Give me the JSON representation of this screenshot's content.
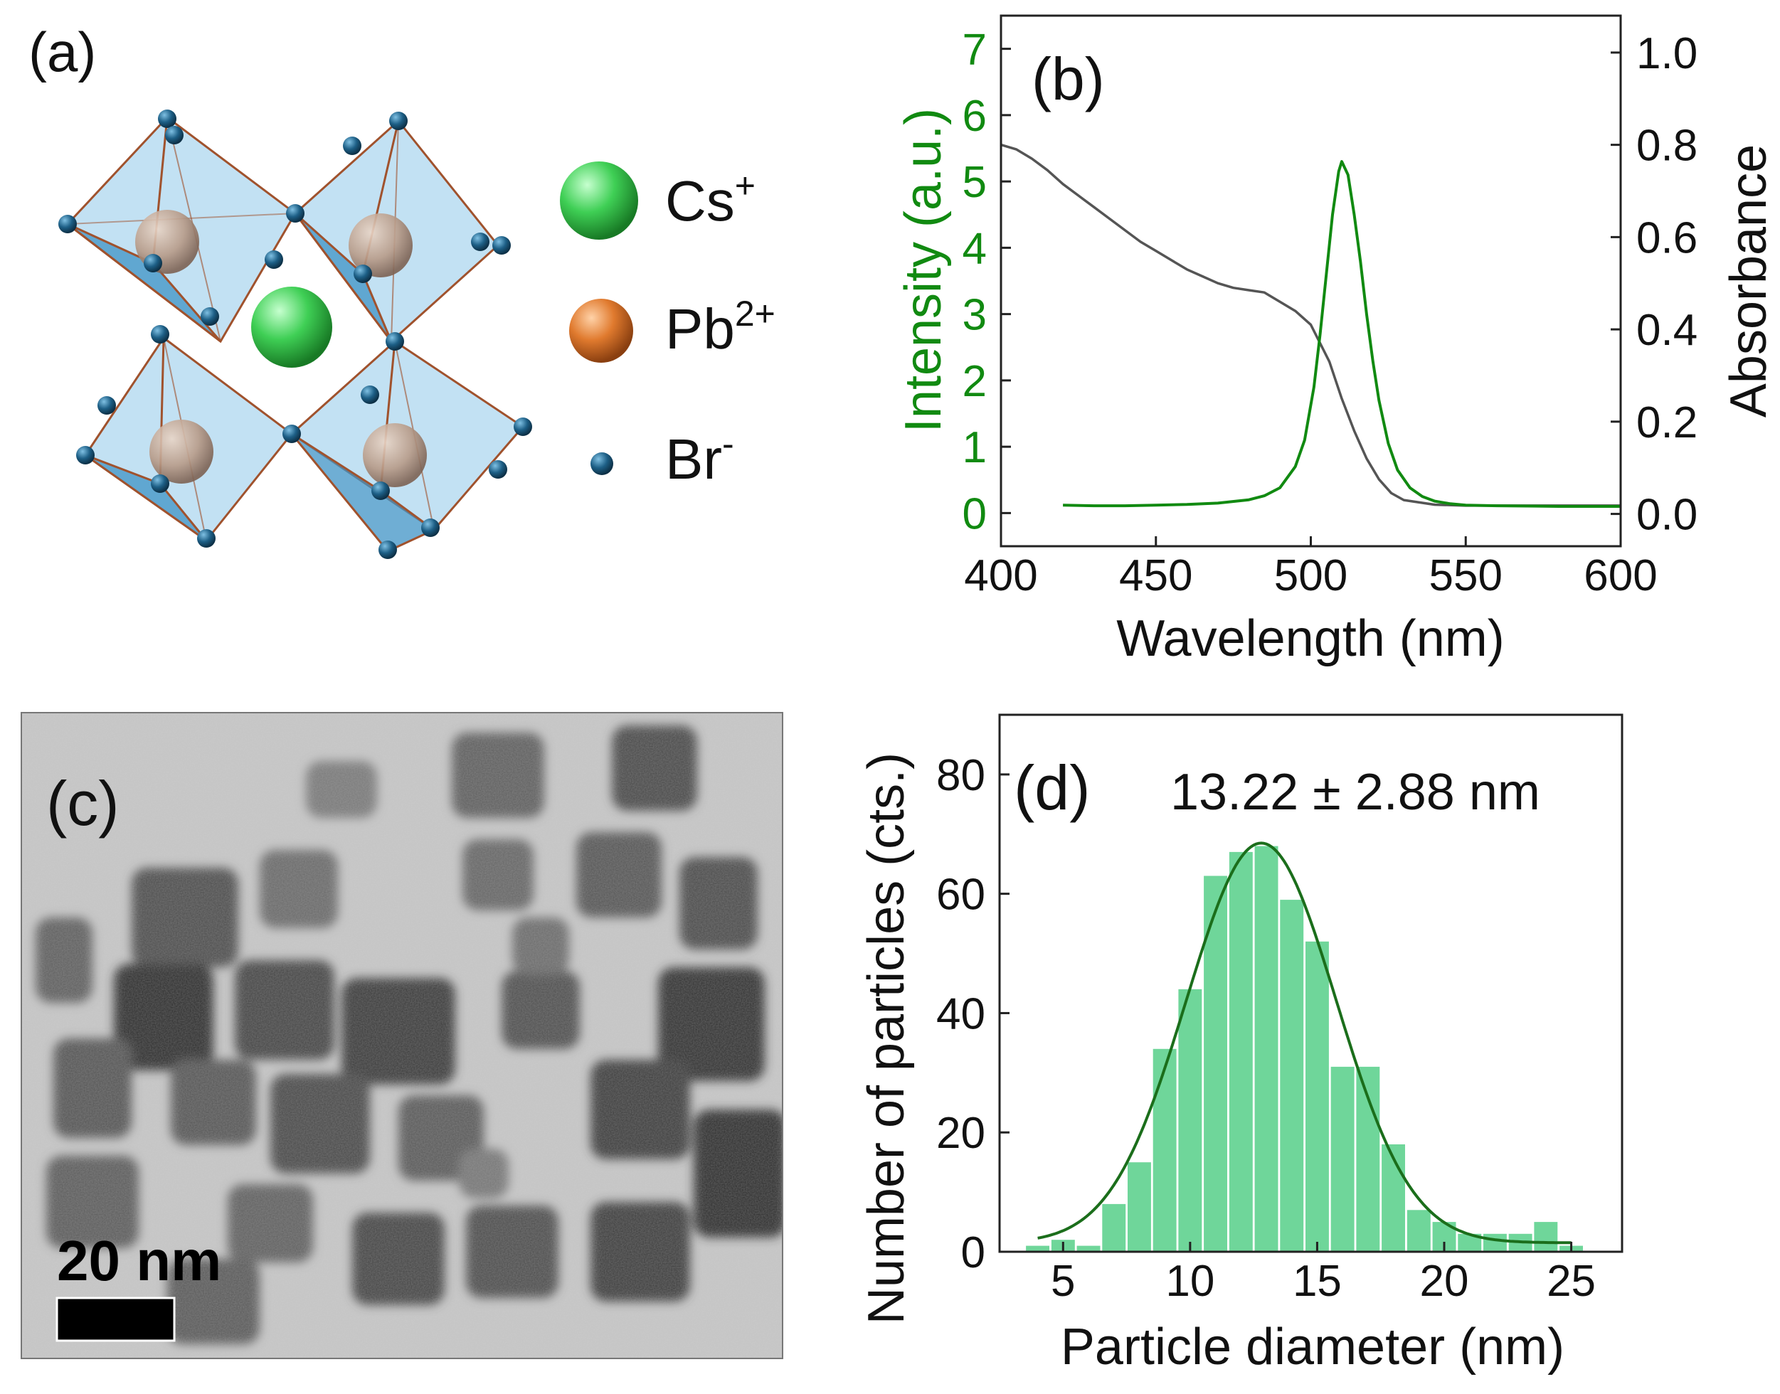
{
  "panel_a": {
    "label": "(a)",
    "legend": [
      {
        "ion": "Cs",
        "charge": "+",
        "color": "#3fcf55"
      },
      {
        "ion": "Pb",
        "charge": "2+",
        "color": "#e07a2e"
      },
      {
        "ion": "Br",
        "charge": "-",
        "color": "#1d5f86"
      }
    ]
  },
  "panel_c": {
    "label": "(c)",
    "scalebar_label": "20 nm"
  },
  "colors": {
    "pl_green": "#118a11",
    "abs_gray": "#555555",
    "hist_fill": "#6fd69a",
    "fit_green": "#1b6e1b",
    "octa_fill": "#8fc9e9",
    "octa_edge": "#a0522d"
  },
  "chart_data": [
    {
      "type": "line",
      "panel_label": "(b)",
      "xlabel": "Wavelength (nm)",
      "ylabel_left": "Intensity (a.u.)",
      "ylabel_right": "Absorbance",
      "xlim": [
        400,
        600
      ],
      "ylim_left": [
        -0.5,
        7.5
      ],
      "ylim_right": [
        -0.07,
        1.08
      ],
      "xticks": [
        400,
        450,
        500,
        550,
        600
      ],
      "yticks_left": [
        0,
        1,
        2,
        3,
        4,
        5,
        6,
        7
      ],
      "yticks_right": [
        "0.0",
        "0.2",
        "0.4",
        "0.6",
        "0.8",
        "1.0"
      ],
      "series": [
        {
          "name": "Absorbance",
          "axis": "right",
          "x": [
            400,
            405,
            410,
            415,
            420,
            425,
            430,
            435,
            440,
            445,
            450,
            455,
            460,
            465,
            470,
            475,
            480,
            485,
            490,
            495,
            500,
            503,
            506,
            510,
            514,
            518,
            522,
            526,
            530,
            540,
            550,
            560,
            580,
            600
          ],
          "y": [
            0.8,
            0.79,
            0.77,
            0.745,
            0.715,
            0.69,
            0.665,
            0.64,
            0.615,
            0.59,
            0.57,
            0.55,
            0.53,
            0.515,
            0.5,
            0.49,
            0.485,
            0.48,
            0.46,
            0.44,
            0.41,
            0.37,
            0.33,
            0.25,
            0.18,
            0.12,
            0.075,
            0.045,
            0.03,
            0.02,
            0.018,
            0.018,
            0.018,
            0.018
          ]
        },
        {
          "name": "PL intensity",
          "axis": "left",
          "x": [
            420,
            430,
            440,
            450,
            460,
            470,
            480,
            485,
            490,
            495,
            498,
            501,
            503,
            505,
            507,
            509,
            510,
            512,
            514,
            516,
            518,
            520,
            522,
            525,
            528,
            532,
            536,
            540,
            545,
            550,
            560,
            580,
            600
          ],
          "y": [
            0.12,
            0.11,
            0.11,
            0.12,
            0.13,
            0.15,
            0.2,
            0.26,
            0.38,
            0.7,
            1.1,
            1.9,
            2.7,
            3.6,
            4.5,
            5.15,
            5.3,
            5.1,
            4.5,
            3.8,
            3.0,
            2.3,
            1.7,
            1.05,
            0.65,
            0.38,
            0.25,
            0.18,
            0.14,
            0.12,
            0.11,
            0.1,
            0.1
          ]
        }
      ]
    },
    {
      "type": "bar",
      "panel_label": "(d)",
      "annotation": "13.22 ± 2.88 nm",
      "xlabel": "Particle diameter (nm)",
      "ylabel": "Number of particles (cts.)",
      "xlim": [
        2.5,
        27
      ],
      "ylim": [
        0,
        90
      ],
      "xticks": [
        5,
        10,
        15,
        20,
        25
      ],
      "yticks": [
        0,
        20,
        40,
        60,
        80
      ],
      "bin_width": 1,
      "x": [
        4,
        5,
        6,
        7,
        8,
        9,
        10,
        11,
        12,
        13,
        14,
        15,
        16,
        17,
        18,
        19,
        20,
        21,
        22,
        23,
        24,
        25
      ],
      "values": [
        1,
        2,
        1,
        8,
        15,
        34,
        44,
        63,
        67,
        68,
        59,
        52,
        31,
        31,
        18,
        7,
        5,
        3,
        3,
        3,
        5,
        1
      ],
      "fit": {
        "type": "gaussian",
        "mean": 12.8,
        "sigma": 2.95,
        "amplitude": 67,
        "baseline": 1.5,
        "x_range": [
          4,
          25
        ]
      }
    }
  ]
}
